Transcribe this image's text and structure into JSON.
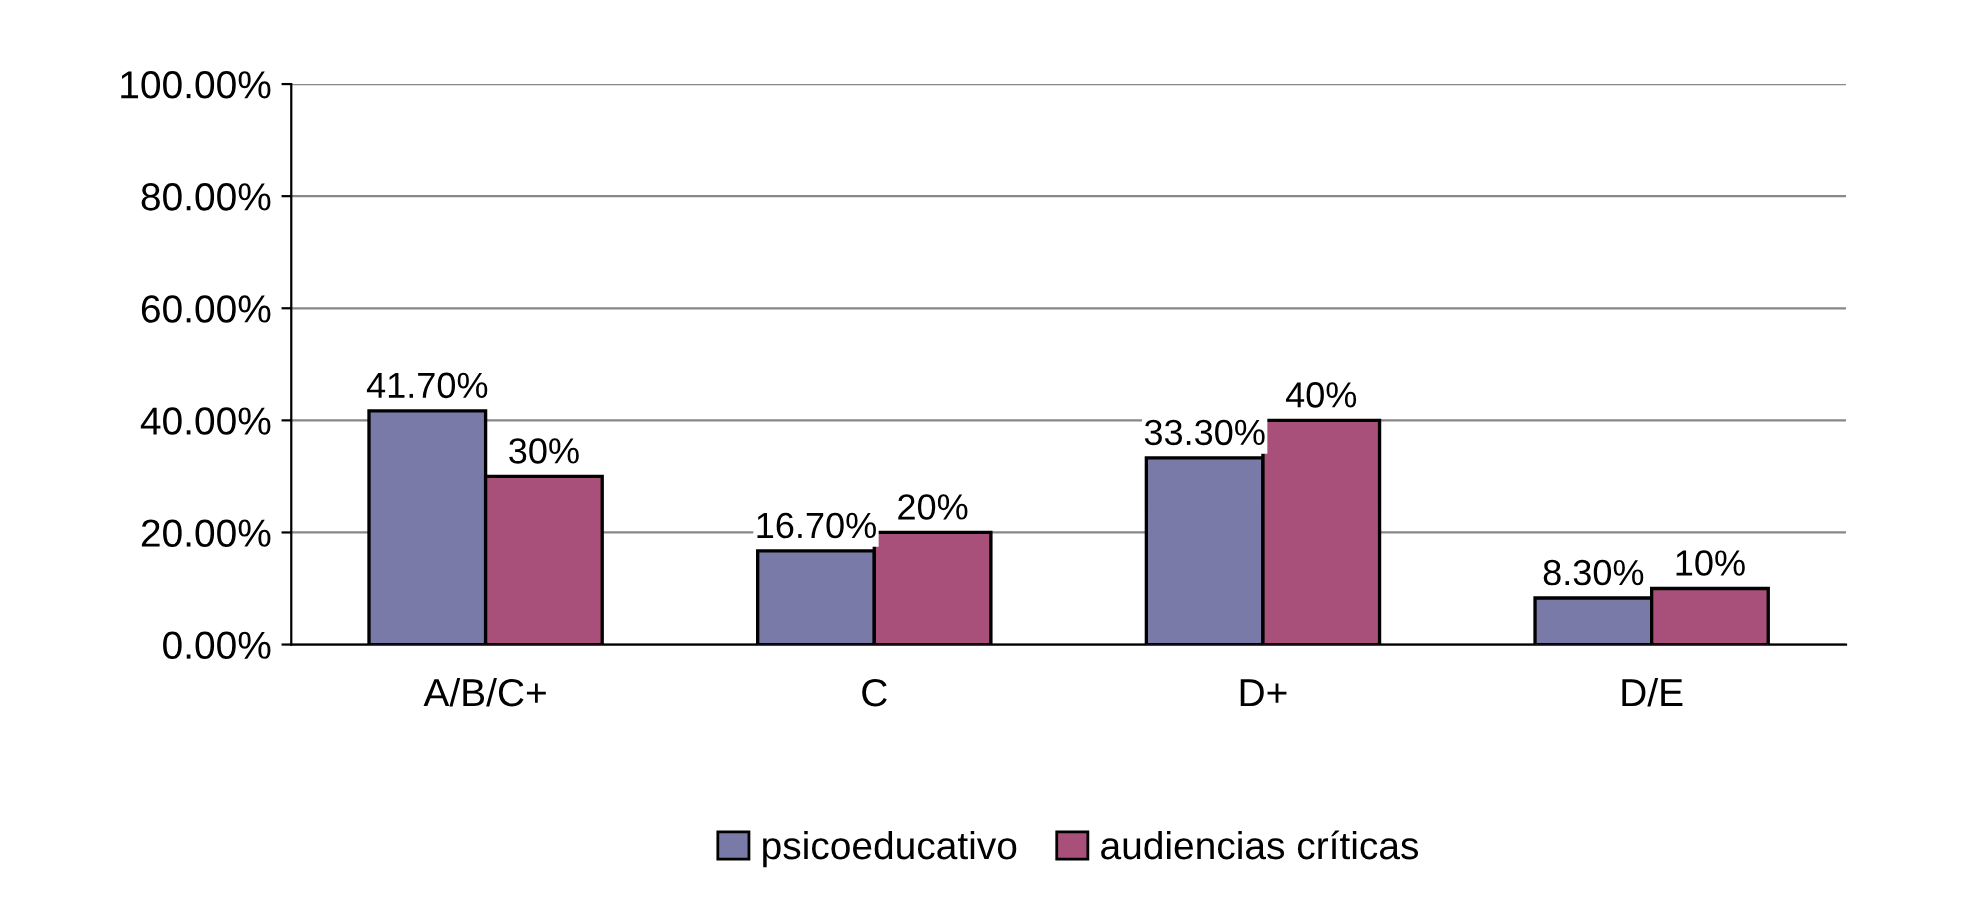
{
  "chart_data": {
    "type": "bar",
    "categories": [
      "A/B/C+",
      "C",
      "D+",
      "D/E"
    ],
    "series": [
      {
        "name": "psicoeducativo",
        "color": "#7a7aa8",
        "values": [
          41.7,
          16.7,
          33.3,
          8.3
        ],
        "value_labels": [
          "41.70%",
          "16.70%",
          "33.30%",
          "8.30%"
        ]
      },
      {
        "name": "audiencias críticas",
        "color": "#a8507a",
        "values": [
          30,
          20,
          40,
          10
        ],
        "value_labels": [
          "30%",
          "20%",
          "40%",
          "10%"
        ]
      }
    ],
    "ylim": [
      0,
      100
    ],
    "yticks": [
      {
        "value": 0,
        "label": "0.00%"
      },
      {
        "value": 20,
        "label": "20.00%"
      },
      {
        "value": 40,
        "label": "40.00%"
      },
      {
        "value": 60,
        "label": "60.00%"
      },
      {
        "value": 80,
        "label": "80.00%"
      },
      {
        "value": 100,
        "label": "100.00%"
      }
    ],
    "grid": "y",
    "legend": "bottom"
  }
}
